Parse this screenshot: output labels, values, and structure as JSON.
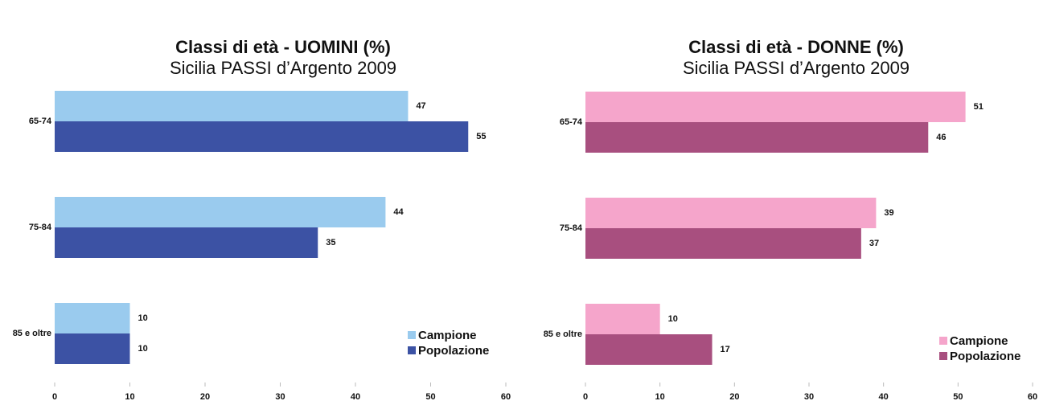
{
  "chart_data": [
    {
      "type": "hbar",
      "title": "Classi di età - UOMINI (%)",
      "subtitle": "Sicilia PASSI d’Argento 2009",
      "categories": [
        "65-74",
        "75-84",
        "85 e oltre"
      ],
      "series": [
        {
          "name": "Campione",
          "color": "#9acbee",
          "values": [
            47,
            44,
            10
          ]
        },
        {
          "name": "Popolazione",
          "color": "#3c52a4",
          "values": [
            55,
            35,
            10
          ]
        }
      ],
      "xlim": [
        0,
        60
      ],
      "xticks": [
        0,
        10,
        20,
        30,
        40,
        50,
        60
      ],
      "legend": "lower right"
    },
    {
      "type": "hbar",
      "title": "Classi di età - DONNE (%)",
      "subtitle": "Sicilia PASSI d’Argento 2009",
      "categories": [
        "65-74",
        "75-84",
        "85 e oltre"
      ],
      "series": [
        {
          "name": "Campione",
          "color": "#f5a5cb",
          "values": [
            51,
            39,
            10
          ]
        },
        {
          "name": "Popolazione",
          "color": "#a84f7f",
          "values": [
            46,
            37,
            17
          ]
        }
      ],
      "xlim": [
        0,
        60
      ],
      "xticks": [
        0,
        10,
        20,
        30,
        40,
        50,
        60
      ],
      "legend": "lower right"
    }
  ]
}
